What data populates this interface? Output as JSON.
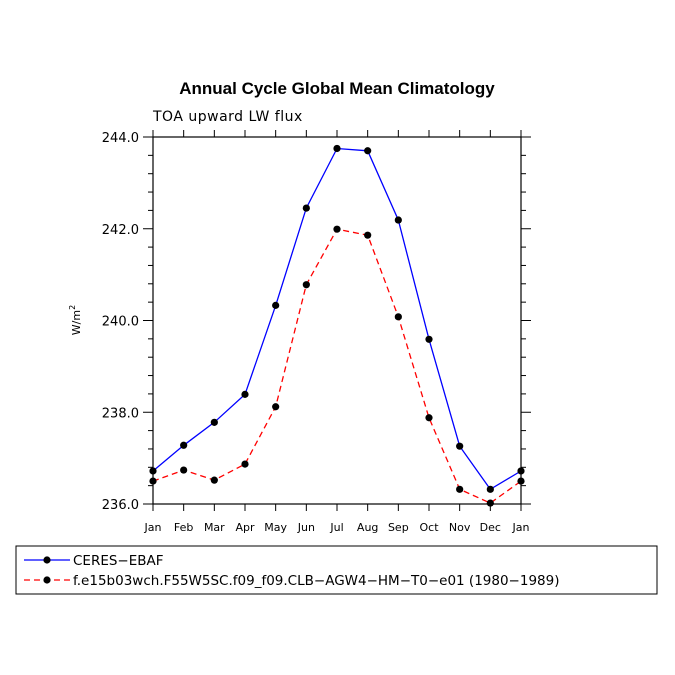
{
  "chart_data": {
    "type": "line",
    "title": "Annual Cycle Global Mean Climatology",
    "subtitle": "TOA upward LW flux",
    "ylabel": "W/m",
    "ylabel_sup": "2",
    "xlabel": "",
    "categories": [
      "Jan",
      "Feb",
      "Mar",
      "Apr",
      "May",
      "Jun",
      "Jul",
      "Aug",
      "Sep",
      "Oct",
      "Nov",
      "Dec",
      "Jan"
    ],
    "ylim": [
      236.0,
      244.0
    ],
    "yticks": [
      236.0,
      238.0,
      240.0,
      242.0,
      244.0
    ],
    "ytick_labels": [
      "236.0",
      "238.0",
      "240.0",
      "242.0",
      "244.0"
    ],
    "series": [
      {
        "name": "CERES−EBAF",
        "color": "#0000ff",
        "dash": "solid",
        "values": [
          236.72,
          237.28,
          237.78,
          238.39,
          240.33,
          242.45,
          243.75,
          243.7,
          242.19,
          239.59,
          237.26,
          236.32,
          236.72
        ]
      },
      {
        "name": "f.e15b03wch.F55W5SC.f09_f09.CLB−AGW4−HM−T0−e01 (1980−1989)",
        "color": "#ff0000",
        "dash": "dashed",
        "values": [
          236.5,
          236.74,
          236.52,
          236.87,
          238.12,
          240.78,
          241.99,
          241.86,
          240.08,
          237.88,
          236.32,
          236.02,
          236.5
        ]
      }
    ]
  }
}
